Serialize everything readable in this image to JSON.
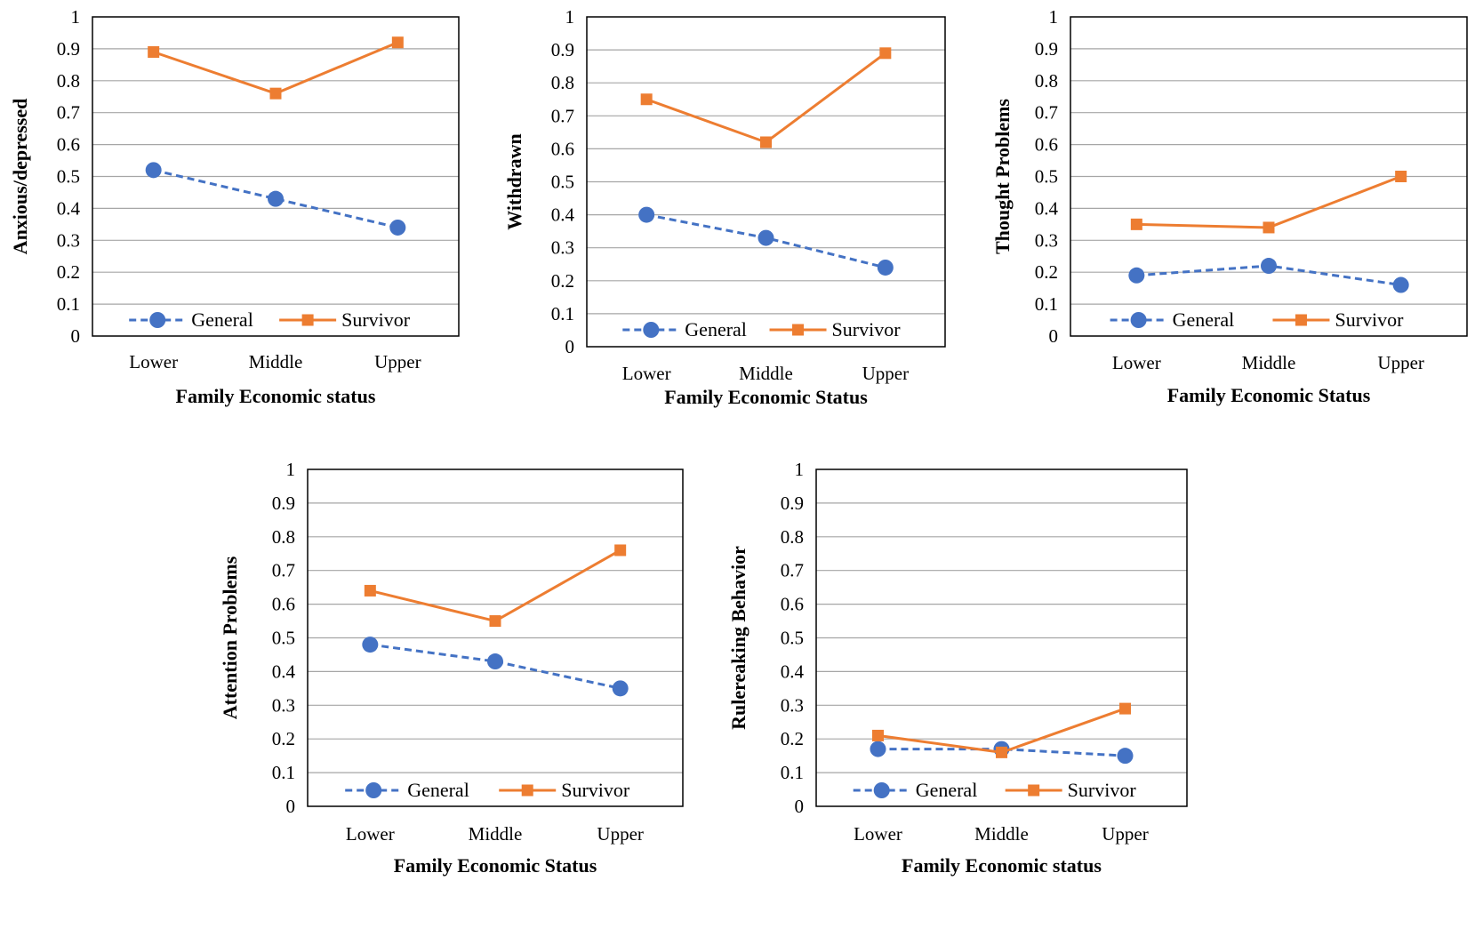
{
  "colors": {
    "general": "#4472C4",
    "survivor": "#ED7D31",
    "grid": "#A6A6A6",
    "frame": "#000000"
  },
  "chart_data": [
    {
      "type": "line",
      "categories": [
        "Lower",
        "Middle",
        "Upper"
      ],
      "xlabel": "Family Economic status",
      "ylabel": "Anxious/depressed",
      "ylim": [
        0,
        1
      ],
      "yticks": [
        "0",
        "0.1",
        "0.2",
        "0.3",
        "0.4",
        "0.5",
        "0.6",
        "0.7",
        "0.8",
        "0.9",
        "1"
      ],
      "grid": true,
      "legend_position": "bottom",
      "series": [
        {
          "name": "General",
          "values": [
            0.52,
            0.43,
            0.34
          ]
        },
        {
          "name": "Survivor",
          "values": [
            0.89,
            0.76,
            0.92
          ]
        }
      ]
    },
    {
      "type": "line",
      "categories": [
        "Lower",
        "Middle",
        "Upper"
      ],
      "xlabel": "Family Economic Status",
      "ylabel": "Withdrawn",
      "ylim": [
        0,
        1
      ],
      "yticks": [
        "0",
        "0.1",
        "0.2",
        "0.3",
        "0.4",
        "0.5",
        "0.6",
        "0.7",
        "0.8",
        "0.9",
        "1"
      ],
      "grid": true,
      "legend_position": "bottom",
      "series": [
        {
          "name": "General",
          "values": [
            0.4,
            0.33,
            0.24
          ]
        },
        {
          "name": "Survivor",
          "values": [
            0.75,
            0.62,
            0.89
          ]
        }
      ]
    },
    {
      "type": "line",
      "categories": [
        "Lower",
        "Middle",
        "Upper"
      ],
      "xlabel": "Family Economic Status",
      "ylabel": "Thought Problems",
      "ylim": [
        0,
        1
      ],
      "yticks": [
        "0",
        "0.1",
        "0.2",
        "0.3",
        "0.4",
        "0.5",
        "0.6",
        "0.7",
        "0.8",
        "0.9",
        "1"
      ],
      "grid": true,
      "legend_position": "bottom",
      "series": [
        {
          "name": "General",
          "values": [
            0.19,
            0.22,
            0.16
          ]
        },
        {
          "name": "Survivor",
          "values": [
            0.35,
            0.34,
            0.5
          ]
        }
      ]
    },
    {
      "type": "line",
      "categories": [
        "Lower",
        "Middle",
        "Upper"
      ],
      "xlabel": "Family Economic Status",
      "ylabel": "Attention Problems",
      "ylim": [
        0,
        1
      ],
      "yticks": [
        "0",
        "0.1",
        "0.2",
        "0.3",
        "0.4",
        "0.5",
        "0.6",
        "0.7",
        "0.8",
        "0.9",
        "1"
      ],
      "grid": true,
      "legend_position": "bottom",
      "series": [
        {
          "name": "General",
          "values": [
            0.48,
            0.43,
            0.35
          ]
        },
        {
          "name": "Survivor",
          "values": [
            0.64,
            0.55,
            0.76
          ]
        }
      ]
    },
    {
      "type": "line",
      "categories": [
        "Lower",
        "Middle",
        "Upper"
      ],
      "xlabel": "Family Economic status",
      "ylabel": "Rulereaking Behavior",
      "ylim": [
        0,
        1
      ],
      "yticks": [
        "0",
        "0.1",
        "0.2",
        "0.3",
        "0.4",
        "0.5",
        "0.6",
        "0.7",
        "0.8",
        "0.9",
        "1"
      ],
      "grid": true,
      "legend_position": "bottom",
      "series": [
        {
          "name": "General",
          "values": [
            0.17,
            0.17,
            0.15
          ]
        },
        {
          "name": "Survivor",
          "values": [
            0.21,
            0.16,
            0.29
          ]
        }
      ]
    }
  ]
}
